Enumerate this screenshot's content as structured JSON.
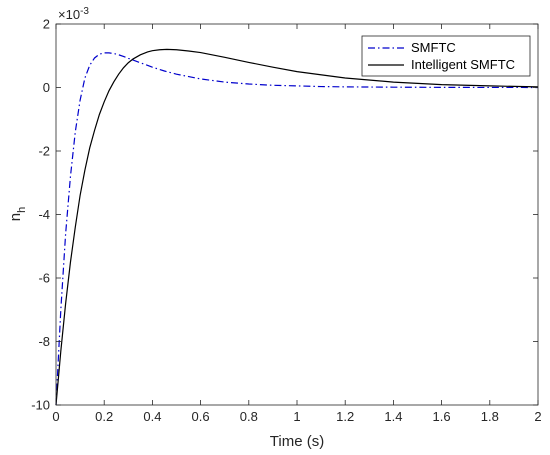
{
  "chart_data": {
    "type": "line",
    "xlabel": "Time (s)",
    "ylabel": "n",
    "ylabel_subscript": "h",
    "exponent_label": "×10",
    "exponent_power": "-3",
    "xlim": [
      0,
      2
    ],
    "ylim": [
      -10,
      2
    ],
    "xticks": [
      0,
      0.2,
      0.4,
      0.6,
      0.8,
      1,
      1.2,
      1.4,
      1.6,
      1.8,
      2
    ],
    "xtick_labels": [
      "0",
      "0.2",
      "0.4",
      "0.6",
      "0.8",
      "1",
      "1.2",
      "1.4",
      "1.6",
      "1.8",
      "2"
    ],
    "yticks": [
      -10,
      -8,
      -6,
      -4,
      -2,
      0,
      2
    ],
    "ytick_labels": [
      "-10",
      "-8",
      "-6",
      "-4",
      "-2",
      "0",
      "2"
    ],
    "grid": false,
    "legend_position": "top-right",
    "series": [
      {
        "name": "SMFTC",
        "color": "#0000cc",
        "line_style": "dash-dot",
        "x": [
          0,
          0.02,
          0.04,
          0.06,
          0.08,
          0.1,
          0.12,
          0.14,
          0.16,
          0.18,
          0.2,
          0.22,
          0.24,
          0.26,
          0.28,
          0.3,
          0.35,
          0.4,
          0.45,
          0.5,
          0.6,
          0.7,
          0.8,
          0.9,
          1.0,
          1.1,
          1.2,
          1.4,
          1.6,
          1.8,
          2.0
        ],
        "y": [
          -10,
          -7.0,
          -4.6,
          -2.8,
          -1.4,
          -0.4,
          0.3,
          0.7,
          0.93,
          1.05,
          1.09,
          1.09,
          1.07,
          1.03,
          0.98,
          0.92,
          0.78,
          0.64,
          0.52,
          0.42,
          0.27,
          0.17,
          0.11,
          0.07,
          0.05,
          0.03,
          0.02,
          0.01,
          0.005,
          0.002,
          0.001
        ]
      },
      {
        "name": "Intelligent SMFTC",
        "color": "#000000",
        "line_style": "solid",
        "x": [
          0,
          0.02,
          0.04,
          0.06,
          0.08,
          0.1,
          0.12,
          0.14,
          0.16,
          0.18,
          0.2,
          0.22,
          0.24,
          0.26,
          0.28,
          0.3,
          0.32,
          0.35,
          0.38,
          0.4,
          0.43,
          0.46,
          0.5,
          0.55,
          0.6,
          0.7,
          0.8,
          0.9,
          1.0,
          1.2,
          1.4,
          1.6,
          1.8,
          2.0
        ],
        "y": [
          -10,
          -8.3,
          -6.8,
          -5.5,
          -4.4,
          -3.4,
          -2.6,
          -1.9,
          -1.35,
          -0.85,
          -0.45,
          -0.1,
          0.18,
          0.42,
          0.62,
          0.78,
          0.9,
          1.03,
          1.12,
          1.16,
          1.19,
          1.2,
          1.19,
          1.15,
          1.1,
          0.95,
          0.79,
          0.64,
          0.5,
          0.3,
          0.17,
          0.09,
          0.05,
          0.02
        ]
      }
    ]
  }
}
